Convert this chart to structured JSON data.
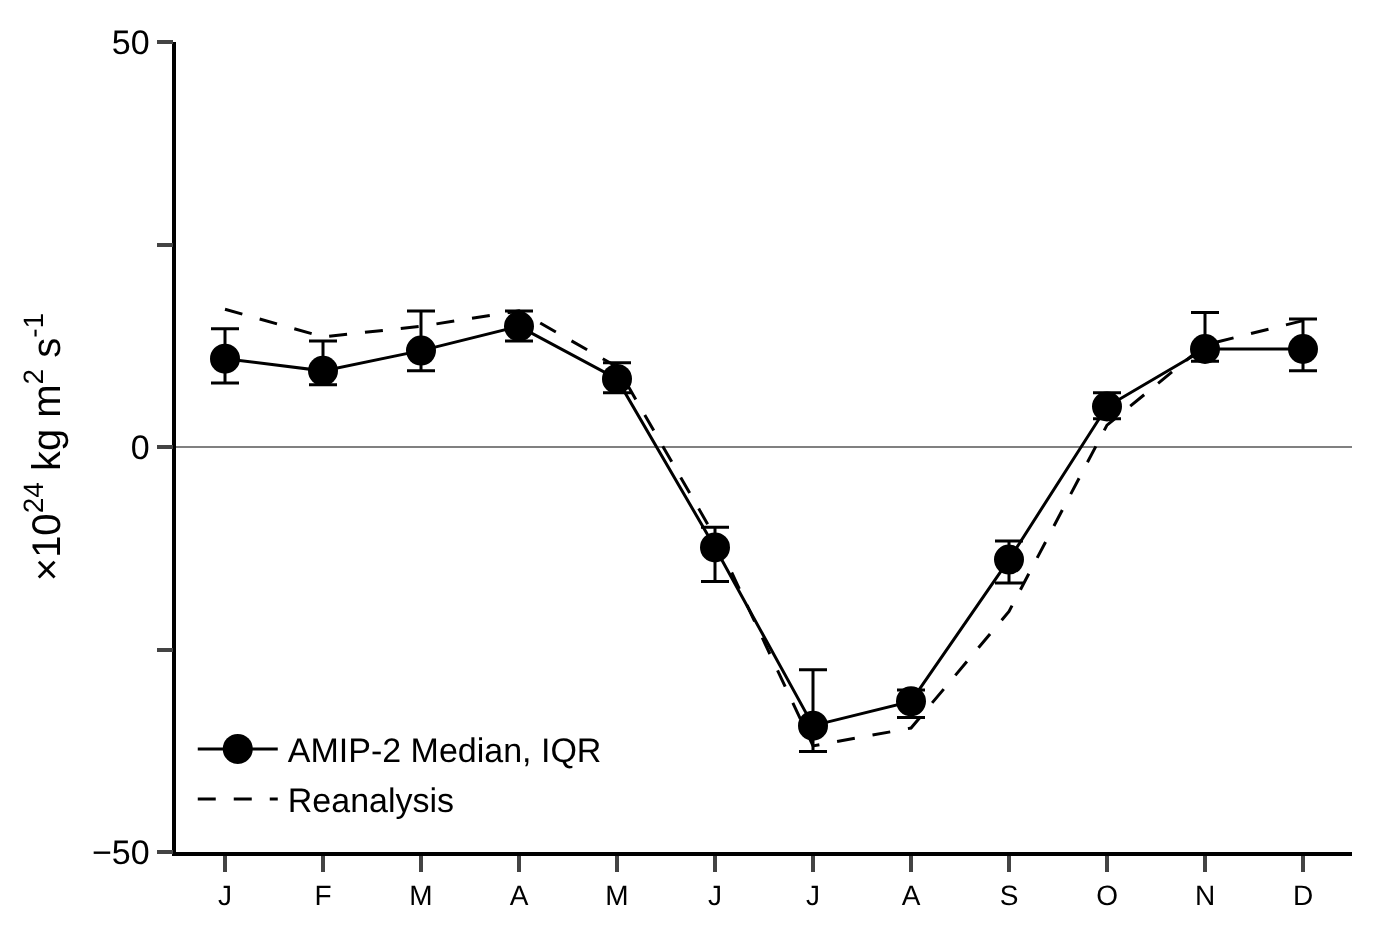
{
  "chart_data": {
    "type": "line",
    "ylabel": "×10$^{24}$ kg m$^{2}$ s$^{-1}$",
    "categories": [
      "J",
      "F",
      "M",
      "A",
      "M",
      "J",
      "J",
      "A",
      "S",
      "O",
      "N",
      "D"
    ],
    "series": [
      {
        "name": "AMIP-2 Median, IQR",
        "color": "#000000",
        "marker": "circle",
        "line_style": "solid",
        "values": [
          10.9,
          9.4,
          11.9,
          14.9,
          8.4,
          -12.4,
          -34.4,
          -31.4,
          -13.9,
          5.0,
          12.1,
          12.1
        ],
        "errors": [
          [
            7.9,
            14.6
          ],
          [
            7.7,
            13.1
          ],
          [
            9.4,
            16.8
          ],
          [
            13.1,
            16.8
          ],
          [
            6.7,
            10.4
          ],
          [
            -16.6,
            -9.9
          ],
          [
            -37.6,
            -27.5
          ],
          [
            -33.4,
            -30.0
          ],
          [
            -16.8,
            -11.6
          ],
          [
            3.5,
            6.7
          ],
          [
            10.6,
            16.6
          ],
          [
            9.4,
            15.8
          ]
        ]
      },
      {
        "name": "Reanalysis",
        "color": "#000000",
        "marker": "none",
        "line_style": "dashed",
        "values": [
          17.0,
          13.6,
          14.9,
          16.8,
          9.9,
          -11.1,
          -36.9,
          -34.7,
          -20.3,
          2.7,
          12.6,
          15.6
        ]
      }
    ],
    "ylim": [
      -50,
      50
    ],
    "yticks": [
      -50,
      {
        "value": -25,
        "label": null
      },
      0,
      {
        "value": 25,
        "label": null
      },
      50
    ],
    "ref_lines": [
      {
        "axis": "y",
        "value": 0,
        "color": "#808080"
      }
    ],
    "grid": false,
    "legend": "bottom left"
  }
}
